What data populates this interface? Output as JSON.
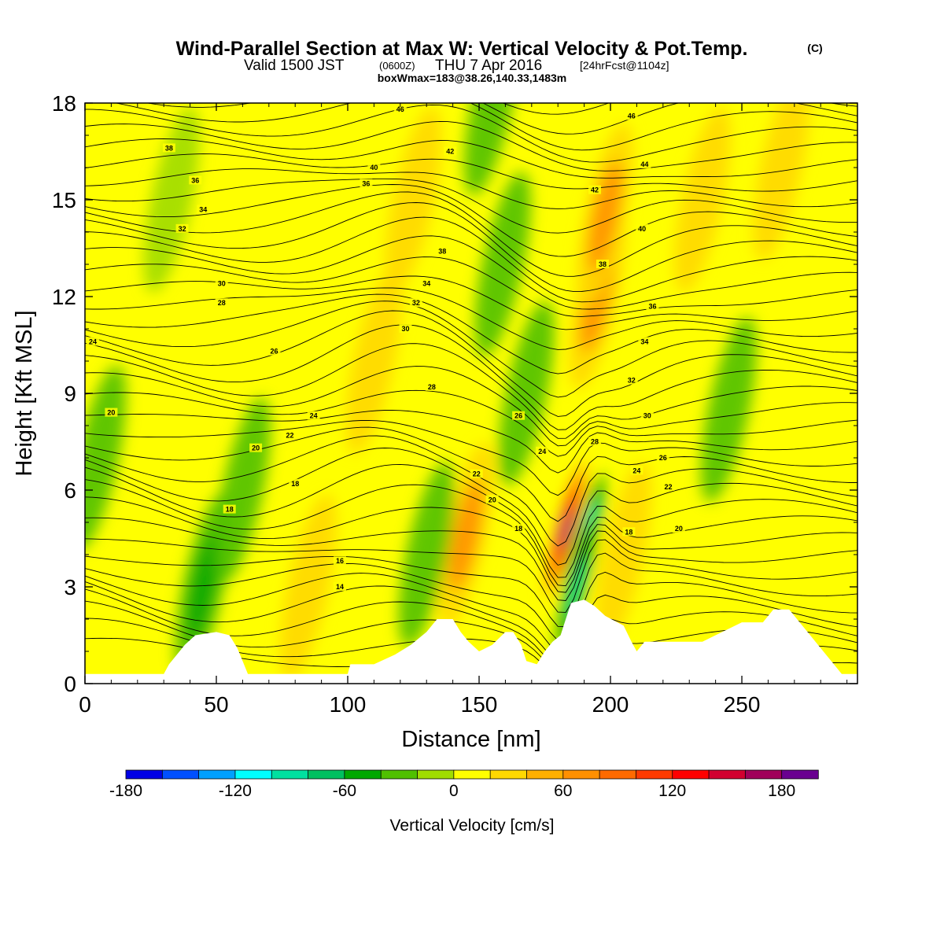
{
  "header": {
    "title": "Wind-Parallel Section at Max W: Vertical Velocity & Pot.Temp.",
    "copyright": "(C)",
    "valid_prefix": "Valid 1500 JST",
    "valid_utc": "(0600Z)",
    "valid_date": "THU 7 Apr 2016",
    "forecast": "[24hrFcst@1104z]",
    "boxwmax": "boxWmax=183@38.26,140.33,1483m"
  },
  "chart_data": {
    "type": "heatmap",
    "xlabel": "Distance [nm]",
    "ylabel": "Height [Kft MSL]",
    "xlim": [
      0,
      294
    ],
    "ylim": [
      0,
      18
    ],
    "x_ticks": [
      0,
      50,
      100,
      150,
      200,
      250
    ],
    "y_ticks": [
      0,
      3,
      6,
      9,
      12,
      15,
      18
    ],
    "colorbar": {
      "label": "Vertical Velocity [cm/s]",
      "min": -180,
      "max": 200,
      "step": 20,
      "tick_labels": [
        "-180",
        "-120",
        "-60",
        "0",
        "60",
        "120",
        "180"
      ],
      "tick_values": [
        -180,
        -120,
        -60,
        0,
        60,
        120,
        180
      ],
      "colors": [
        "#0000e6",
        "#0050ff",
        "#00a0ff",
        "#00ffff",
        "#00e0a0",
        "#00c060",
        "#00a800",
        "#50c000",
        "#a0dc00",
        "#ffff00",
        "#ffd800",
        "#ffb000",
        "#ff9000",
        "#ff6a00",
        "#ff3a00",
        "#ff0000",
        "#d20030",
        "#a0005a",
        "#6a0090"
      ]
    },
    "terrain_kft": [
      [
        0,
        0.3
      ],
      [
        30,
        0.3
      ],
      [
        32,
        0.6
      ],
      [
        35,
        0.9
      ],
      [
        38,
        1.2
      ],
      [
        42,
        1.5
      ],
      [
        50,
        1.6
      ],
      [
        55,
        1.5
      ],
      [
        58,
        1.1
      ],
      [
        60,
        0.7
      ],
      [
        62,
        0.3
      ],
      [
        100,
        0.3
      ],
      [
        101,
        0.6
      ],
      [
        110,
        0.6
      ],
      [
        118,
        0.9
      ],
      [
        124,
        1.2
      ],
      [
        130,
        1.6
      ],
      [
        134,
        2.0
      ],
      [
        140,
        2.0
      ],
      [
        143,
        1.6
      ],
      [
        146,
        1.3
      ],
      [
        150,
        1.0
      ],
      [
        155,
        1.2
      ],
      [
        160,
        1.6
      ],
      [
        163,
        1.6
      ],
      [
        166,
        1.2
      ],
      [
        168,
        0.7
      ],
      [
        172,
        0.6
      ],
      [
        175,
        1.0
      ],
      [
        178,
        1.3
      ],
      [
        181,
        1.5
      ],
      [
        183,
        2.0
      ],
      [
        185,
        2.5
      ],
      [
        190,
        2.6
      ],
      [
        194,
        2.4
      ],
      [
        198,
        2.1
      ],
      [
        205,
        1.8
      ],
      [
        208,
        1.3
      ],
      [
        210,
        1.0
      ],
      [
        213,
        1.3
      ],
      [
        225,
        1.3
      ],
      [
        235,
        1.3
      ],
      [
        250,
        1.9
      ],
      [
        258,
        1.9
      ],
      [
        262,
        2.3
      ],
      [
        268,
        2.3
      ],
      [
        272,
        1.9
      ],
      [
        276,
        1.5
      ],
      [
        280,
        1.1
      ],
      [
        284,
        0.7
      ],
      [
        288,
        0.3
      ],
      [
        294,
        0.3
      ]
    ],
    "w_cells": [
      {
        "x": 183,
        "z": 4.8,
        "w": 185
      },
      {
        "x": 190,
        "z": 4.3,
        "w": -150
      },
      {
        "x": 187,
        "z": 3.0,
        "w": -110
      },
      {
        "x": 145,
        "z": 4.6,
        "w": 60
      },
      {
        "x": 110,
        "z": 10.0,
        "w": 45
      },
      {
        "x": 195,
        "z": 12.0,
        "w": 70
      },
      {
        "x": 198,
        "z": 14.5,
        "w": 85
      },
      {
        "x": 125,
        "z": 15.0,
        "w": 50
      },
      {
        "x": 155,
        "z": 18.0,
        "w": -55
      },
      {
        "x": 159,
        "z": 13.0,
        "w": -35
      },
      {
        "x": 168,
        "z": 9.0,
        "w": -30
      },
      {
        "x": 45,
        "z": 3.0,
        "w": -70
      },
      {
        "x": 60,
        "z": 6.0,
        "w": -30
      },
      {
        "x": 5,
        "z": 7.0,
        "w": -25
      },
      {
        "x": 245,
        "z": 8.5,
        "w": -30
      },
      {
        "x": 130,
        "z": 4.0,
        "w": -30
      },
      {
        "x": 205,
        "z": 4.0,
        "w": 30
      },
      {
        "x": 235,
        "z": 15.0,
        "w": 40
      },
      {
        "x": 265,
        "z": 16.0,
        "w": 35
      },
      {
        "x": 85,
        "z": 3.0,
        "w": 30
      },
      {
        "x": 33,
        "z": 15.0,
        "w": -20
      }
    ],
    "theta_labels": [
      {
        "x": 120,
        "z": 17.8,
        "t": "46"
      },
      {
        "x": 208,
        "z": 17.6,
        "t": "46"
      },
      {
        "x": 32,
        "z": 16.6,
        "t": "38"
      },
      {
        "x": 110,
        "z": 16.0,
        "t": "40"
      },
      {
        "x": 139,
        "z": 16.5,
        "t": "42"
      },
      {
        "x": 213,
        "z": 16.1,
        "t": "44"
      },
      {
        "x": 42,
        "z": 15.6,
        "t": "36"
      },
      {
        "x": 107,
        "z": 15.5,
        "t": "36"
      },
      {
        "x": 194,
        "z": 15.3,
        "t": "42"
      },
      {
        "x": 45,
        "z": 14.7,
        "t": "34"
      },
      {
        "x": 37,
        "z": 14.1,
        "t": "32"
      },
      {
        "x": 212,
        "z": 14.1,
        "t": "40"
      },
      {
        "x": 136,
        "z": 13.4,
        "t": "38"
      },
      {
        "x": 197,
        "z": 13.0,
        "t": "38"
      },
      {
        "x": 52,
        "z": 12.4,
        "t": "30"
      },
      {
        "x": 130,
        "z": 12.4,
        "t": "34"
      },
      {
        "x": 52,
        "z": 11.8,
        "t": "28"
      },
      {
        "x": 126,
        "z": 11.8,
        "t": "32"
      },
      {
        "x": 216,
        "z": 11.7,
        "t": "36"
      },
      {
        "x": 122,
        "z": 11.0,
        "t": "30"
      },
      {
        "x": 3,
        "z": 10.6,
        "t": "24"
      },
      {
        "x": 72,
        "z": 10.3,
        "t": "26"
      },
      {
        "x": 213,
        "z": 10.6,
        "t": "34"
      },
      {
        "x": 132,
        "z": 9.2,
        "t": "28"
      },
      {
        "x": 208,
        "z": 9.4,
        "t": "32"
      },
      {
        "x": 10,
        "z": 8.4,
        "t": "20"
      },
      {
        "x": 87,
        "z": 8.3,
        "t": "24"
      },
      {
        "x": 165,
        "z": 8.3,
        "t": "26"
      },
      {
        "x": 214,
        "z": 8.3,
        "t": "30"
      },
      {
        "x": 78,
        "z": 7.7,
        "t": "22"
      },
      {
        "x": 174,
        "z": 7.2,
        "t": "24"
      },
      {
        "x": 194,
        "z": 7.5,
        "t": "28"
      },
      {
        "x": 65,
        "z": 7.3,
        "t": "20"
      },
      {
        "x": 220,
        "z": 7.0,
        "t": "26"
      },
      {
        "x": 210,
        "z": 6.6,
        "t": "24"
      },
      {
        "x": 149,
        "z": 6.5,
        "t": "22"
      },
      {
        "x": 80,
        "z": 6.2,
        "t": "18"
      },
      {
        "x": 222,
        "z": 6.1,
        "t": "22"
      },
      {
        "x": 155,
        "z": 5.7,
        "t": "20"
      },
      {
        "x": 55,
        "z": 5.4,
        "t": "18"
      },
      {
        "x": 165,
        "z": 4.8,
        "t": "18"
      },
      {
        "x": 207,
        "z": 4.7,
        "t": "18"
      },
      {
        "x": 226,
        "z": 4.8,
        "t": "20"
      },
      {
        "x": 97,
        "z": 3.8,
        "t": "16"
      },
      {
        "x": 97,
        "z": 3.0,
        "t": "14"
      }
    ]
  }
}
